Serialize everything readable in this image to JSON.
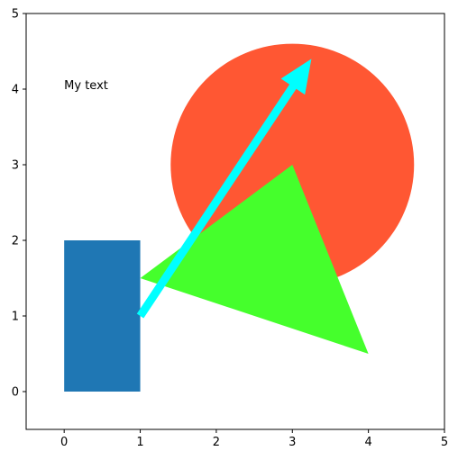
{
  "chart_data": {
    "type": "shapes",
    "xlim": [
      -0.5,
      5
    ],
    "ylim": [
      -0.5,
      5
    ],
    "x_ticks": [
      "0",
      "1",
      "2",
      "3",
      "4",
      "5"
    ],
    "y_ticks": [
      "0",
      "1",
      "2",
      "3",
      "4",
      "5"
    ],
    "grid": false,
    "shapes": {
      "rectangle": {
        "x": 0,
        "y": 0,
        "width": 1,
        "height": 2,
        "color": "#1f77b4"
      },
      "circle": {
        "cx": 3,
        "cy": 3,
        "r": 1.6,
        "color": "#ff5733"
      },
      "triangle": {
        "points": [
          [
            1,
            1.5
          ],
          [
            3,
            3
          ],
          [
            4,
            0.5
          ]
        ],
        "color": "#45ff2c"
      },
      "arrow": {
        "from": [
          1,
          1
        ],
        "to": [
          3.25,
          4.4
        ],
        "color": "#00ffff"
      }
    },
    "annotations": [
      {
        "text": "My text",
        "x": 0,
        "y": 4
      }
    ]
  }
}
